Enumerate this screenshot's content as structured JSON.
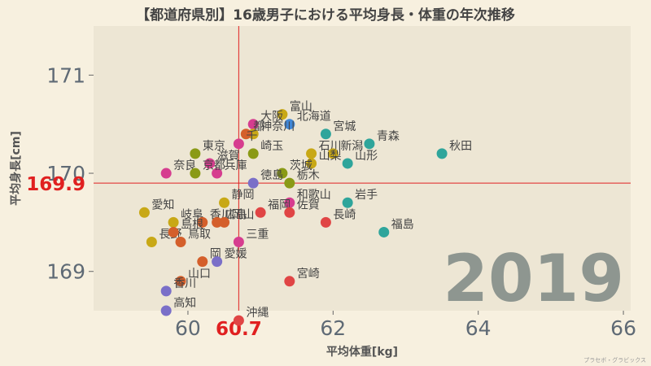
{
  "credit": "プラセボ・グラビックス",
  "chart_data": {
    "type": "scatter",
    "title": "【都道府県別】16歳男子における平均身長・体重の年次推移",
    "xlabel": "平均体重[kg]",
    "ylabel": "平均身長[cm]",
    "xlim": [
      58.7,
      66.1
    ],
    "ylim": [
      168.6,
      171.5
    ],
    "xticks": [
      60,
      62,
      64,
      66
    ],
    "yticks": [
      169,
      170,
      171
    ],
    "year": "2019",
    "ref_x": {
      "value": 60.7,
      "label": "60.7",
      "color": "#e02020"
    },
    "ref_y": {
      "value": 169.9,
      "label": "169.9",
      "color": "#e02020"
    },
    "background": "#ede6d4",
    "grid": false,
    "points": [
      {
        "label": "富山",
        "x": 61.3,
        "y": 170.6,
        "color": "#c8a816"
      },
      {
        "label": "大阪",
        "x": 60.9,
        "y": 170.5,
        "color": "#d63d8f"
      },
      {
        "label": "北海道",
        "x": 61.4,
        "y": 170.5,
        "color": "#3f86d6"
      },
      {
        "label": "神奈川",
        "x": 60.9,
        "y": 170.4,
        "color": "#c8a816"
      },
      {
        "label": "宮城",
        "x": 61.9,
        "y": 170.4,
        "color": "#2fa59b"
      },
      {
        "label": "都",
        "x": 60.8,
        "y": 170.4,
        "color": "#d45f2b"
      },
      {
        "label": "青森",
        "x": 62.5,
        "y": 170.3,
        "color": "#2fa59b"
      },
      {
        "label": "千",
        "x": 60.7,
        "y": 170.3,
        "color": "#d63d8f"
      },
      {
        "label": "崎玉",
        "x": 60.9,
        "y": 170.2,
        "color": "#8a9a16"
      },
      {
        "label": "秋田",
        "x": 63.5,
        "y": 170.2,
        "color": "#2fa59b"
      },
      {
        "label": "東京",
        "x": 60.1,
        "y": 170.2,
        "color": "#8a9a16"
      },
      {
        "label": "石川",
        "x": 61.7,
        "y": 170.2,
        "color": "#c8a816"
      },
      {
        "label": "新潟",
        "x": 62.0,
        "y": 170.2,
        "color": "#c8a816"
      },
      {
        "label": "滋賀",
        "x": 60.3,
        "y": 170.1,
        "color": "#d63d8f"
      },
      {
        "label": "山梨",
        "x": 61.7,
        "y": 170.1,
        "color": "#c8a816"
      },
      {
        "label": "山形",
        "x": 62.2,
        "y": 170.1,
        "color": "#2fa59b"
      },
      {
        "label": "奈良",
        "x": 59.7,
        "y": 170.0,
        "color": "#d63d8f"
      },
      {
        "label": "兵庫",
        "x": 60.4,
        "y": 170.0,
        "color": "#d63d8f"
      },
      {
        "label": "京都",
        "x": 60.1,
        "y": 170.0,
        "color": "#8a9a16"
      },
      {
        "label": "茨城",
        "x": 61.3,
        "y": 170.0,
        "color": "#8a9a16"
      },
      {
        "label": "徳島",
        "x": 60.9,
        "y": 169.9,
        "color": "#7a6fc8"
      },
      {
        "label": "栃木",
        "x": 61.4,
        "y": 169.9,
        "color": "#8a9a16"
      },
      {
        "label": "静岡",
        "x": 60.5,
        "y": 169.7,
        "color": "#c8a816"
      },
      {
        "label": "和歌山",
        "x": 61.4,
        "y": 169.7,
        "color": "#d63d8f"
      },
      {
        "label": "岩手",
        "x": 62.2,
        "y": 169.7,
        "color": "#2fa59b"
      },
      {
        "label": "福岡",
        "x": 61.0,
        "y": 169.6,
        "color": "#e04545"
      },
      {
        "label": "佐賀",
        "x": 61.4,
        "y": 169.6,
        "color": "#e04545"
      },
      {
        "label": "愛知",
        "x": 59.4,
        "y": 169.6,
        "color": "#c8a816"
      },
      {
        "label": "長崎",
        "x": 61.9,
        "y": 169.5,
        "color": "#e04545"
      },
      {
        "label": "岐阜",
        "x": 59.8,
        "y": 169.5,
        "color": "#c8a816"
      },
      {
        "label": "香川",
        "x": 60.2,
        "y": 169.5,
        "color": "#d45f2b"
      },
      {
        "label": "広島",
        "x": 60.4,
        "y": 169.5,
        "color": "#d45f2b"
      },
      {
        "label": "岡山",
        "x": 60.5,
        "y": 169.5,
        "color": "#d45f2b"
      },
      {
        "label": "福島",
        "x": 62.7,
        "y": 169.4,
        "color": "#2fa59b"
      },
      {
        "label": "長野",
        "x": 59.5,
        "y": 169.3,
        "color": "#c8a816"
      },
      {
        "label": "鳥取",
        "x": 59.9,
        "y": 169.3,
        "color": "#d45f2b"
      },
      {
        "label": "島根",
        "x": 59.8,
        "y": 169.4,
        "color": "#d45f2b"
      },
      {
        "label": "三重",
        "x": 60.7,
        "y": 169.3,
        "color": "#d63d8f"
      },
      {
        "label": "岡",
        "x": 60.2,
        "y": 169.1,
        "color": "#d45f2b"
      },
      {
        "label": "愛媛",
        "x": 60.4,
        "y": 169.1,
        "color": "#7a6fc8"
      },
      {
        "label": "山口",
        "x": 59.9,
        "y": 168.9,
        "color": "#d45f2b"
      },
      {
        "label": "宮崎",
        "x": 61.4,
        "y": 168.9,
        "color": "#e04545"
      },
      {
        "label": "香川",
        "x": 59.7,
        "y": 168.8,
        "color": "#7a6fc8"
      },
      {
        "label": "高知",
        "x": 59.7,
        "y": 168.6,
        "color": "#7a6fc8"
      },
      {
        "label": "沖縄",
        "x": 60.7,
        "y": 168.5,
        "color": "#e04545"
      }
    ]
  }
}
